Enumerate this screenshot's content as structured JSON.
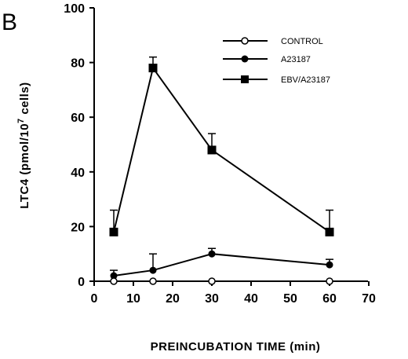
{
  "chart_data": {
    "type": "line",
    "panel_label": "B",
    "xlabel": "PREINCUBATION TIME (min)",
    "ylabel": {
      "main": "LTC4 (pmol/10",
      "sup": "7",
      "end": " cells)"
    },
    "xlim": [
      0,
      70
    ],
    "ylim": [
      0,
      100
    ],
    "xticks": [
      0,
      10,
      20,
      30,
      40,
      50,
      60,
      70
    ],
    "yticks": [
      0,
      20,
      40,
      60,
      80,
      100
    ],
    "grid": false,
    "legend_position": "top-right",
    "x": [
      5,
      15,
      30,
      60
    ],
    "series": [
      {
        "name": "CONTROL",
        "marker": "open-circle",
        "values": [
          0,
          0,
          0,
          0
        ],
        "err": [
          0,
          0,
          0,
          0
        ]
      },
      {
        "name": "A23187",
        "marker": "filled-circle",
        "values": [
          2,
          4,
          10,
          6
        ],
        "err": [
          2,
          6,
          2,
          2
        ]
      },
      {
        "name": "EBV/A23187",
        "marker": "filled-square",
        "values": [
          18,
          78,
          48,
          18
        ],
        "err": [
          8,
          4,
          6,
          8
        ]
      }
    ]
  }
}
